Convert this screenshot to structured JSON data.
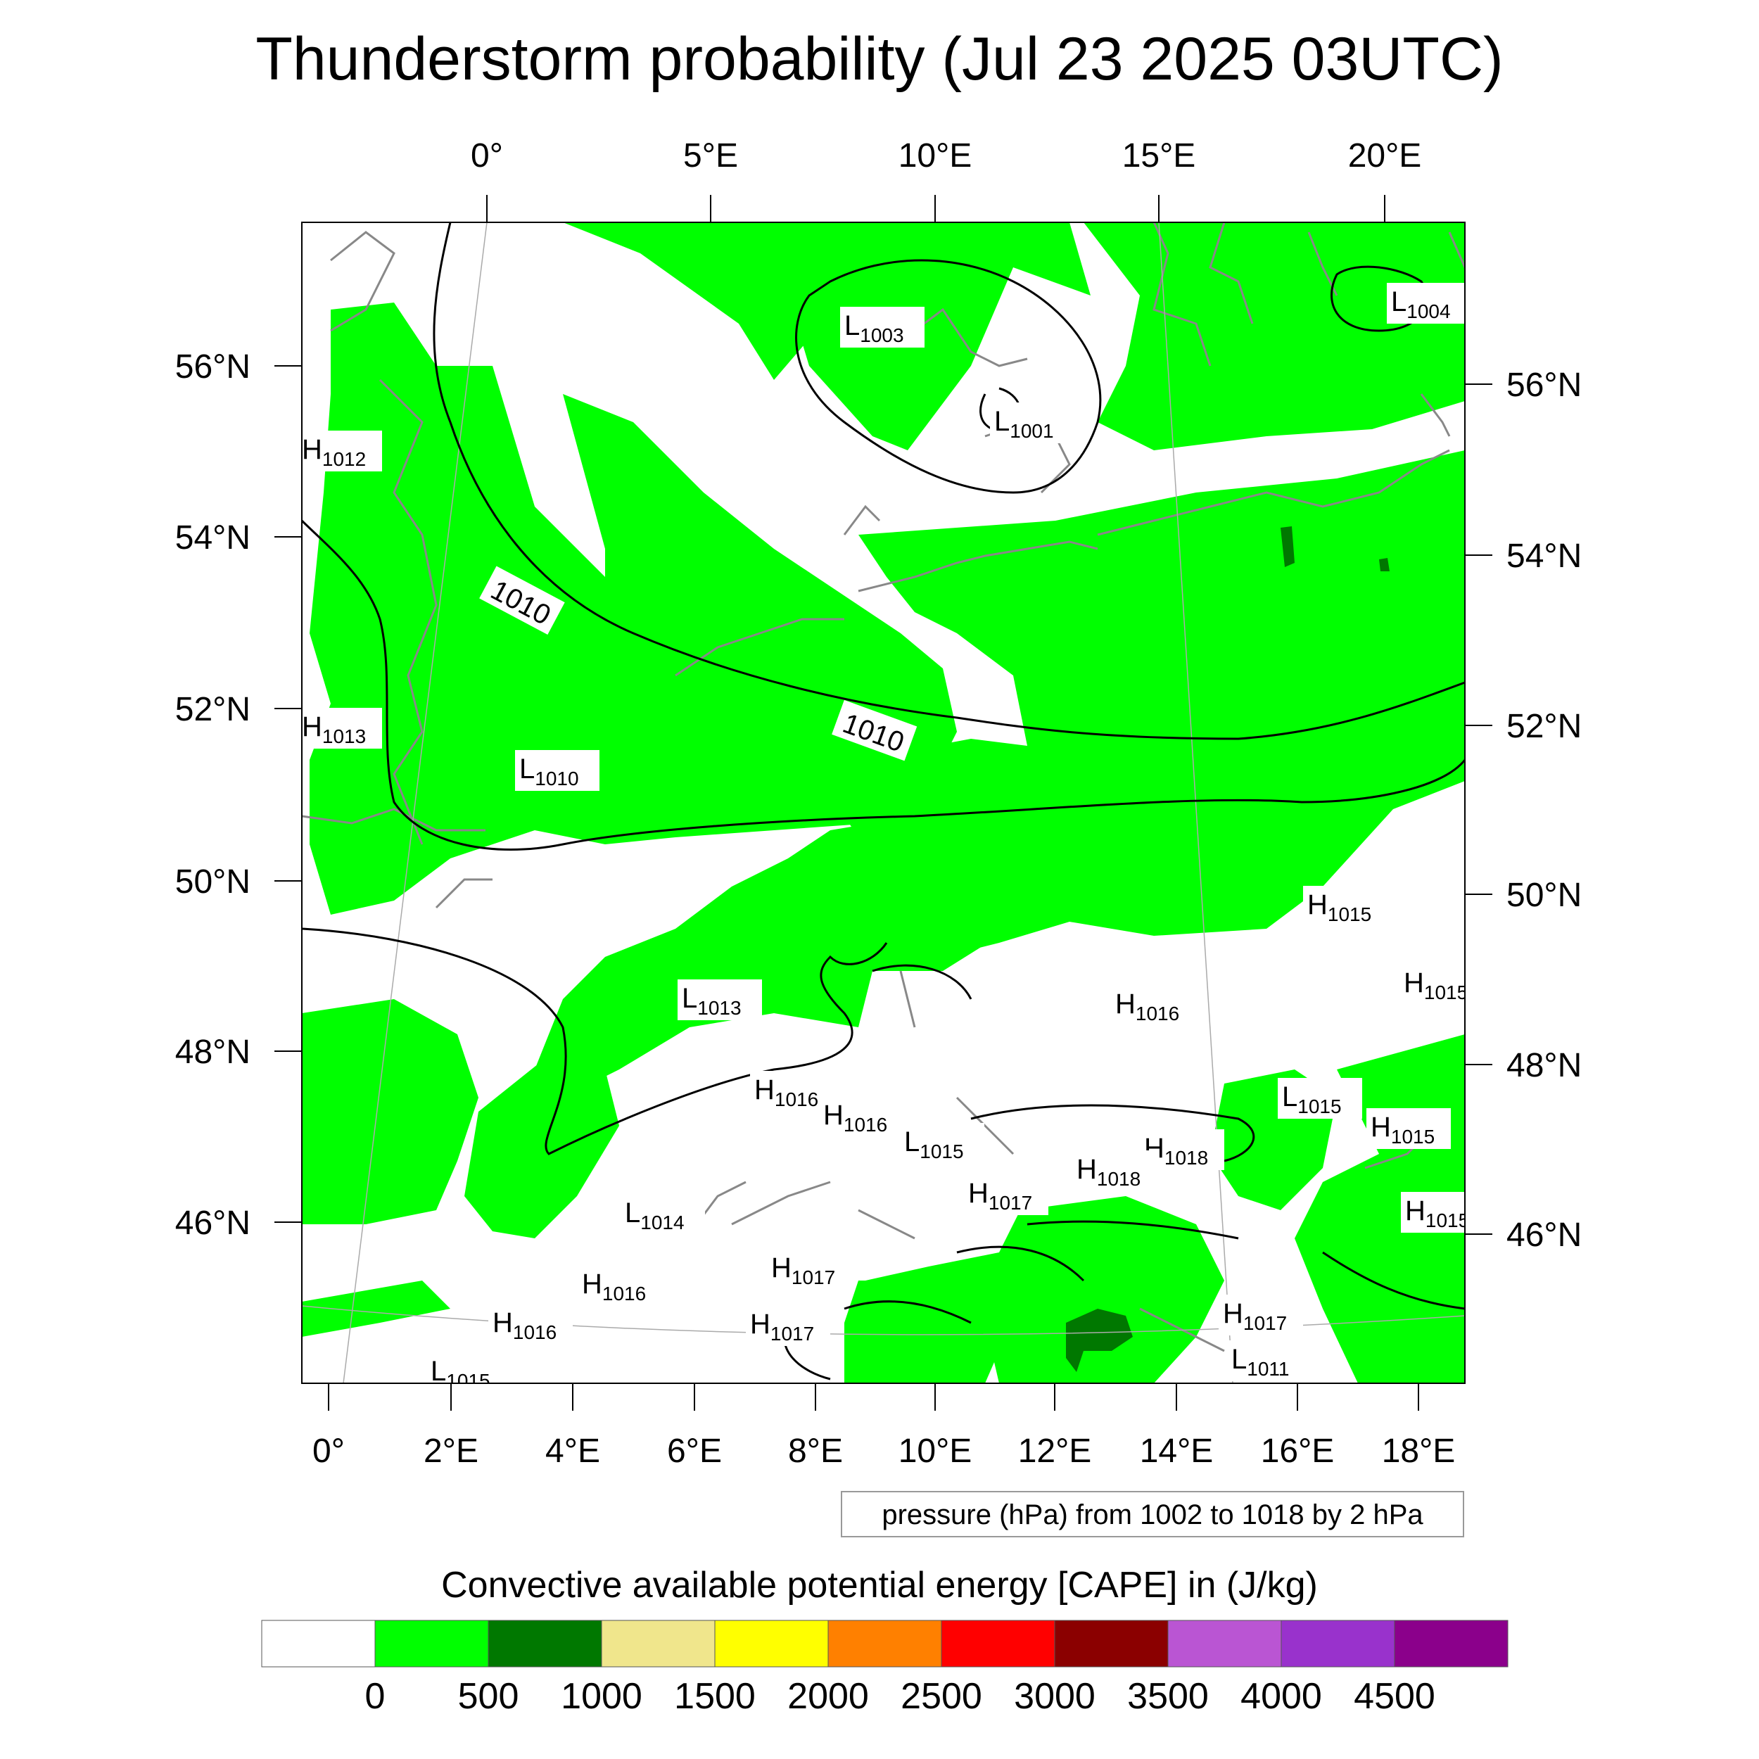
{
  "title": "Thunderstorm probability (Jul 23 2025 03UTC)",
  "top_lon_labels": [
    "0°",
    "5°E",
    "10°E",
    "15°E",
    "20°E"
  ],
  "bottom_lon_labels": [
    "0°",
    "2°E",
    "4°E",
    "6°E",
    "8°E",
    "10°E",
    "12°E",
    "14°E",
    "16°E",
    "18°E"
  ],
  "left_lat_labels": [
    "56°N",
    "54°N",
    "52°N",
    "50°N",
    "48°N",
    "46°N"
  ],
  "right_lat_labels": [
    "56°N",
    "54°N",
    "52°N",
    "50°N",
    "48°N",
    "46°N"
  ],
  "isobar_labels": [
    "1010",
    "1010"
  ],
  "pressure_centers": [
    {
      "type": "L",
      "value": "1003"
    },
    {
      "type": "L",
      "value": "1004"
    },
    {
      "type": "L",
      "value": "1001"
    },
    {
      "type": "H",
      "value": "1012"
    },
    {
      "type": "H",
      "value": "1013"
    },
    {
      "type": "L",
      "value": "1010"
    },
    {
      "type": "H",
      "value": "1015"
    },
    {
      "type": "H",
      "value": "1015"
    },
    {
      "type": "L",
      "value": "1013"
    },
    {
      "type": "H",
      "value": "1016"
    },
    {
      "type": "H",
      "value": "1016"
    },
    {
      "type": "H",
      "value": "1016"
    },
    {
      "type": "L",
      "value": "1015"
    },
    {
      "type": "L",
      "value": "1015"
    },
    {
      "type": "H",
      "value": "1018"
    },
    {
      "type": "H",
      "value": "1018"
    },
    {
      "type": "H",
      "value": "1015"
    },
    {
      "type": "H",
      "value": "1015"
    },
    {
      "type": "L",
      "value": "1014"
    },
    {
      "type": "H",
      "value": "1017"
    },
    {
      "type": "H",
      "value": "1017"
    },
    {
      "type": "H",
      "value": "1016"
    },
    {
      "type": "H",
      "value": "1017"
    },
    {
      "type": "H",
      "value": "1016"
    },
    {
      "type": "H",
      "value": "1017"
    },
    {
      "type": "L",
      "value": "1015"
    },
    {
      "type": "L",
      "value": "1011"
    }
  ],
  "contour_info": "pressure (hPa) from 1002 to 1018 by 2 hPa",
  "legend": {
    "title": "Convective available potential energy [CAPE] in (J/kg)",
    "colors": [
      "#ffffff",
      "#00ff00",
      "#007800",
      "#f0e68c",
      "#ffff00",
      "#ff8000",
      "#ff0000",
      "#8b0000",
      "#ba55d3",
      "#9932cc",
      "#8b008b"
    ],
    "ticks": [
      "0",
      "500",
      "1000",
      "1500",
      "2000",
      "2500",
      "3000",
      "3500",
      "4000",
      "4500"
    ]
  }
}
